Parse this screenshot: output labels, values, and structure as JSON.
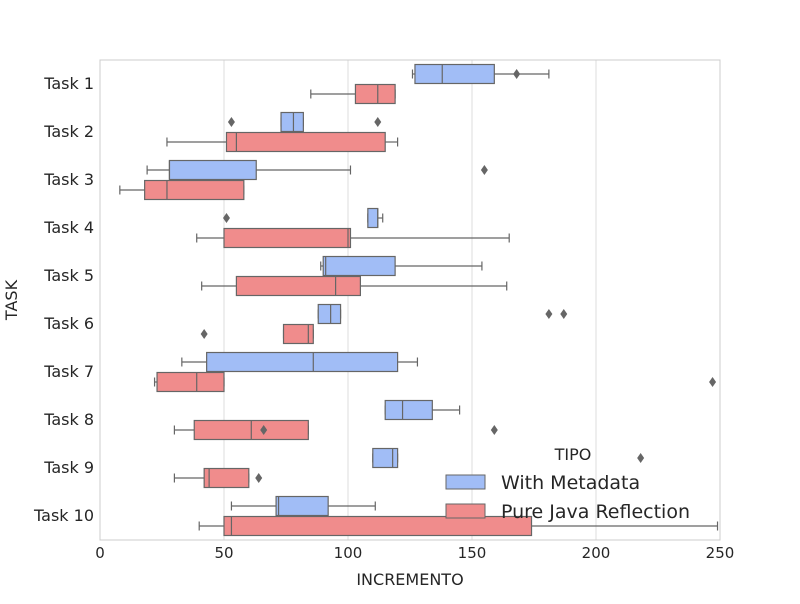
{
  "chart_data": {
    "type": "boxplot",
    "orientation": "horizontal",
    "xlabel": "INCREMENTO",
    "ylabel": "TASK",
    "xlim": [
      0,
      250
    ],
    "xticks": [
      0,
      50,
      100,
      150,
      200,
      250
    ],
    "grid": true,
    "legend": {
      "title": "TIPO",
      "placement": "lower-right"
    },
    "categories": [
      "Task 1",
      "Task 2",
      "Task 3",
      "Task 4",
      "Task 5",
      "Task 6",
      "Task 7",
      "Task 8",
      "Task 9",
      "Task 10"
    ],
    "series": [
      {
        "name": "With Metadata",
        "color": "#a1bdf6",
        "boxes": [
          {
            "whislo": 126,
            "q1": 127,
            "med": 138,
            "q3": 159,
            "whishi": 181,
            "fliers": [
              168
            ]
          },
          {
            "whislo": 73,
            "q1": 73,
            "med": 78,
            "q3": 82,
            "whishi": 82,
            "fliers": [
              53,
              112
            ]
          },
          {
            "whislo": 19,
            "q1": 28,
            "med": 28,
            "q3": 63,
            "whishi": 101,
            "fliers": [
              155
            ]
          },
          {
            "whislo": 108,
            "q1": 108,
            "med": 112,
            "q3": 112,
            "whishi": 114,
            "fliers": [
              51
            ]
          },
          {
            "whislo": 89,
            "q1": 90,
            "med": 91,
            "q3": 119,
            "whishi": 154,
            "fliers": []
          },
          {
            "whislo": 88,
            "q1": 88,
            "med": 93,
            "q3": 97,
            "whishi": 97,
            "fliers": [
              181,
              187
            ]
          },
          {
            "whislo": 33,
            "q1": 43,
            "med": 86,
            "q3": 120,
            "whishi": 128,
            "fliers": []
          },
          {
            "whislo": 115,
            "q1": 115,
            "med": 122,
            "q3": 134,
            "whishi": 145,
            "fliers": []
          },
          {
            "whislo": 110,
            "q1": 110,
            "med": 118,
            "q3": 120,
            "whishi": 120,
            "fliers": [
              218
            ]
          },
          {
            "whislo": 53,
            "q1": 71,
            "med": 72,
            "q3": 92,
            "whishi": 111,
            "fliers": []
          }
        ]
      },
      {
        "name": "Pure Java Reflection",
        "color": "#f08c8c",
        "boxes": [
          {
            "whislo": 85,
            "q1": 103,
            "med": 112,
            "q3": 119,
            "whishi": 119,
            "fliers": []
          },
          {
            "whislo": 27,
            "q1": 51,
            "med": 55,
            "q3": 115,
            "whishi": 120,
            "fliers": []
          },
          {
            "whislo": 8,
            "q1": 18,
            "med": 27,
            "q3": 58,
            "whishi": 58,
            "fliers": []
          },
          {
            "whislo": 39,
            "q1": 50,
            "med": 100,
            "q3": 101,
            "whishi": 165,
            "fliers": []
          },
          {
            "whislo": 41,
            "q1": 55,
            "med": 95,
            "q3": 105,
            "whishi": 164,
            "fliers": []
          },
          {
            "whislo": 74,
            "q1": 74,
            "med": 84,
            "q3": 86,
            "whishi": 86,
            "fliers": [
              42
            ]
          },
          {
            "whislo": 22,
            "q1": 23,
            "med": 39,
            "q3": 50,
            "whishi": 50,
            "fliers": [
              247
            ]
          },
          {
            "whislo": 30,
            "q1": 38,
            "med": 61,
            "q3": 84,
            "whishi": 84,
            "fliers": [
              66,
              159
            ]
          },
          {
            "whislo": 30,
            "q1": 42,
            "med": 44,
            "q3": 60,
            "whishi": 60,
            "fliers": [
              64
            ]
          },
          {
            "whislo": 40,
            "q1": 50,
            "med": 53,
            "q3": 174,
            "whishi": 249,
            "fliers": []
          }
        ]
      }
    ]
  }
}
